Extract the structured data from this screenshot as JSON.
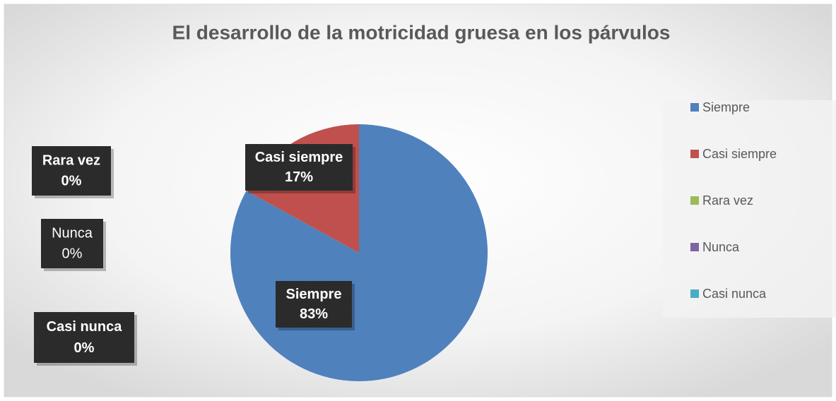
{
  "chart_data": {
    "type": "pie",
    "title": "El desarrollo de la motricidad gruesa en los párvulos",
    "categories": [
      "Siempre",
      "Casi siempre",
      "Rara vez",
      "Nunca",
      "Casi nunca"
    ],
    "values": [
      83,
      17,
      0,
      0,
      0
    ],
    "value_labels": [
      "83%",
      "17%",
      "0%",
      "0%",
      "0%"
    ],
    "colors": [
      "#4f81bd",
      "#c0504d",
      "#9bbb59",
      "#8064a2",
      "#4bacc6"
    ],
    "legend": "right"
  }
}
